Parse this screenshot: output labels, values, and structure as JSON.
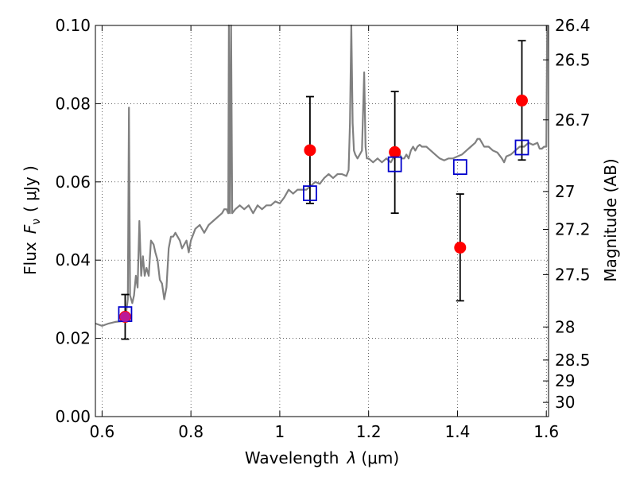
{
  "chart_data": {
    "type": "scatter",
    "xlabel": "Wavelength  λ (μm)",
    "ylabel": "Flux  F_ν  ( μJy )",
    "ylabel_parts": {
      "prefix": "Flux",
      "symbol": "F",
      "subscript": "ν",
      "units": "( μJy )"
    },
    "xlabel_parts": {
      "prefix": "Wavelength",
      "symbol": "λ",
      "units": "(μm)"
    },
    "y2label": "Magnitude (AB)",
    "xlim": [
      0.585,
      1.605
    ],
    "ylim": [
      0.0,
      0.1
    ],
    "grid": true,
    "x_ticks": [
      {
        "value": 0.6,
        "label": "0.6"
      },
      {
        "value": 0.8,
        "label": "0.8"
      },
      {
        "value": 1.0,
        "label": "1"
      },
      {
        "value": 1.2,
        "label": "1.2"
      },
      {
        "value": 1.4,
        "label": "1.4"
      },
      {
        "value": 1.6,
        "label": "1.6"
      }
    ],
    "y_ticks": [
      {
        "value": 0.0,
        "label": "0.00"
      },
      {
        "value": 0.02,
        "label": "0.02"
      },
      {
        "value": 0.04,
        "label": "0.04"
      },
      {
        "value": 0.06,
        "label": "0.06"
      },
      {
        "value": 0.08,
        "label": "0.08"
      },
      {
        "value": 0.1,
        "label": "0.10"
      }
    ],
    "y2_ticks": [
      {
        "mag": 26.4,
        "label": "26.4"
      },
      {
        "mag": 26.5,
        "label": "26.5"
      },
      {
        "mag": 26.7,
        "label": "26.7"
      },
      {
        "mag": 27.0,
        "label": "27"
      },
      {
        "mag": 27.2,
        "label": "27.2"
      },
      {
        "mag": 27.5,
        "label": "27.5"
      },
      {
        "mag": 28.0,
        "label": "28"
      },
      {
        "mag": 28.5,
        "label": "28.5"
      },
      {
        "mag": 29.0,
        "label": "29"
      },
      {
        "mag": 30.0,
        "label": "30"
      }
    ],
    "series": [
      {
        "kind": "spectrum",
        "color": "#808080",
        "points": [
          [
            0.585,
            0.0238
          ],
          [
            0.6,
            0.0232
          ],
          [
            0.615,
            0.0238
          ],
          [
            0.63,
            0.0242
          ],
          [
            0.645,
            0.0244
          ],
          [
            0.652,
            0.0248
          ],
          [
            0.658,
            0.03
          ],
          [
            0.6605,
            0.079
          ],
          [
            0.663,
            0.031
          ],
          [
            0.668,
            0.029
          ],
          [
            0.672,
            0.031
          ],
          [
            0.676,
            0.036
          ],
          [
            0.68,
            0.033
          ],
          [
            0.684,
            0.05
          ],
          [
            0.688,
            0.036
          ],
          [
            0.692,
            0.041
          ],
          [
            0.696,
            0.036
          ],
          [
            0.7,
            0.038
          ],
          [
            0.705,
            0.036
          ],
          [
            0.71,
            0.045
          ],
          [
            0.716,
            0.044
          ],
          [
            0.72,
            0.042
          ],
          [
            0.725,
            0.04
          ],
          [
            0.73,
            0.035
          ],
          [
            0.735,
            0.034
          ],
          [
            0.74,
            0.03
          ],
          [
            0.745,
            0.033
          ],
          [
            0.75,
            0.043
          ],
          [
            0.755,
            0.046
          ],
          [
            0.76,
            0.046
          ],
          [
            0.765,
            0.047
          ],
          [
            0.77,
            0.046
          ],
          [
            0.775,
            0.045
          ],
          [
            0.78,
            0.043
          ],
          [
            0.785,
            0.044
          ],
          [
            0.79,
            0.045
          ],
          [
            0.795,
            0.042
          ],
          [
            0.8,
            0.045
          ],
          [
            0.81,
            0.048
          ],
          [
            0.82,
            0.049
          ],
          [
            0.83,
            0.047
          ],
          [
            0.84,
            0.049
          ],
          [
            0.85,
            0.05
          ],
          [
            0.86,
            0.051
          ],
          [
            0.87,
            0.052
          ],
          [
            0.875,
            0.053
          ],
          [
            0.88,
            0.053
          ],
          [
            0.884,
            0.052
          ],
          [
            0.8855,
            0.1
          ],
          [
            0.888,
            0.052
          ],
          [
            0.8905,
            0.1
          ],
          [
            0.893,
            0.052
          ],
          [
            0.9,
            0.053
          ],
          [
            0.91,
            0.054
          ],
          [
            0.92,
            0.053
          ],
          [
            0.93,
            0.054
          ],
          [
            0.94,
            0.052
          ],
          [
            0.95,
            0.054
          ],
          [
            0.96,
            0.053
          ],
          [
            0.97,
            0.054
          ],
          [
            0.98,
            0.054
          ],
          [
            0.99,
            0.055
          ],
          [
            1.0,
            0.0545
          ],
          [
            1.01,
            0.056
          ],
          [
            1.02,
            0.058
          ],
          [
            1.03,
            0.057
          ],
          [
            1.04,
            0.058
          ],
          [
            1.05,
            0.058
          ],
          [
            1.06,
            0.058
          ],
          [
            1.07,
            0.059
          ],
          [
            1.08,
            0.06
          ],
          [
            1.09,
            0.0595
          ],
          [
            1.1,
            0.061
          ],
          [
            1.11,
            0.062
          ],
          [
            1.12,
            0.061
          ],
          [
            1.13,
            0.062
          ],
          [
            1.14,
            0.062
          ],
          [
            1.15,
            0.0615
          ],
          [
            1.155,
            0.063
          ],
          [
            1.158,
            0.075
          ],
          [
            1.161,
            0.1
          ],
          [
            1.164,
            0.075
          ],
          [
            1.167,
            0.068
          ],
          [
            1.17,
            0.067
          ],
          [
            1.175,
            0.066
          ],
          [
            1.18,
            0.067
          ],
          [
            1.185,
            0.068
          ],
          [
            1.19,
            0.088
          ],
          [
            1.193,
            0.069
          ],
          [
            1.196,
            0.066
          ],
          [
            1.2,
            0.066
          ],
          [
            1.21,
            0.065
          ],
          [
            1.22,
            0.066
          ],
          [
            1.23,
            0.065
          ],
          [
            1.24,
            0.066
          ],
          [
            1.25,
            0.065
          ],
          [
            1.255,
            0.066
          ],
          [
            1.26,
            0.067
          ],
          [
            1.265,
            0.068
          ],
          [
            1.27,
            0.067
          ],
          [
            1.275,
            0.066
          ],
          [
            1.28,
            0.066
          ],
          [
            1.285,
            0.067
          ],
          [
            1.29,
            0.066
          ],
          [
            1.295,
            0.068
          ],
          [
            1.3,
            0.069
          ],
          [
            1.305,
            0.068
          ],
          [
            1.31,
            0.069
          ],
          [
            1.315,
            0.0695
          ],
          [
            1.32,
            0.069
          ],
          [
            1.33,
            0.069
          ],
          [
            1.34,
            0.068
          ],
          [
            1.35,
            0.067
          ],
          [
            1.36,
            0.066
          ],
          [
            1.37,
            0.0655
          ],
          [
            1.38,
            0.066
          ],
          [
            1.39,
            0.066
          ],
          [
            1.4,
            0.0665
          ],
          [
            1.41,
            0.067
          ],
          [
            1.42,
            0.068
          ],
          [
            1.43,
            0.069
          ],
          [
            1.44,
            0.07
          ],
          [
            1.445,
            0.071
          ],
          [
            1.45,
            0.071
          ],
          [
            1.455,
            0.07
          ],
          [
            1.46,
            0.069
          ],
          [
            1.47,
            0.069
          ],
          [
            1.48,
            0.068
          ],
          [
            1.49,
            0.0675
          ],
          [
            1.5,
            0.066
          ],
          [
            1.505,
            0.065
          ],
          [
            1.51,
            0.0665
          ],
          [
            1.52,
            0.067
          ],
          [
            1.53,
            0.068
          ],
          [
            1.54,
            0.069
          ],
          [
            1.55,
            0.069
          ],
          [
            1.56,
            0.07
          ],
          [
            1.57,
            0.0695
          ],
          [
            1.58,
            0.07
          ],
          [
            1.585,
            0.0685
          ],
          [
            1.59,
            0.0685
          ],
          [
            1.595,
            0.069
          ],
          [
            1.6,
            0.069
          ],
          [
            1.602,
            0.1
          ]
        ]
      },
      {
        "kind": "observed",
        "color": "#ff0000",
        "points": [
          {
            "x": 0.652,
            "y": 0.0255,
            "yerr_low": 0.0198,
            "yerr_high": 0.0312
          },
          {
            "x": 1.068,
            "y": 0.0681,
            "yerr_low": 0.0545,
            "yerr_high": 0.0818
          },
          {
            "x": 1.259,
            "y": 0.0676,
            "yerr_low": 0.052,
            "yerr_high": 0.0831
          },
          {
            "x": 1.406,
            "y": 0.0432,
            "yerr_low": 0.0296,
            "yerr_high": 0.0569
          },
          {
            "x": 1.545,
            "y": 0.0808,
            "yerr_low": 0.0656,
            "yerr_high": 0.0961
          }
        ]
      },
      {
        "kind": "model-synthetic",
        "color": "#0000cc",
        "points": [
          {
            "x": 0.652,
            "y": 0.0262
          },
          {
            "x": 1.068,
            "y": 0.0571
          },
          {
            "x": 1.259,
            "y": 0.0645
          },
          {
            "x": 1.406,
            "y": 0.0638
          },
          {
            "x": 1.545,
            "y": 0.0688
          }
        ]
      }
    ]
  }
}
